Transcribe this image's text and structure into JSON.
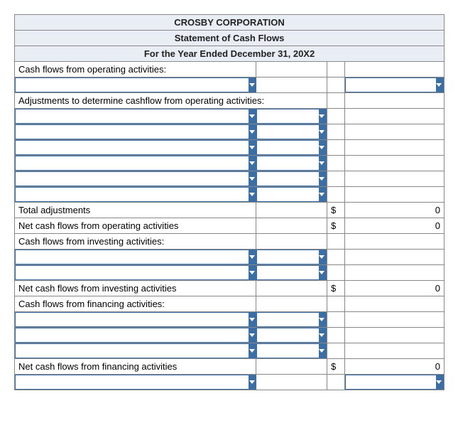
{
  "header": {
    "company": "CROSBY CORPORATION",
    "title": "Statement of Cash Flows",
    "period": "For the Year Ended December 31, 20X2"
  },
  "sections": {
    "op_label": "Cash flows from operating activities:",
    "adj_label": "Adjustments to determine cashflow from operating activities:",
    "tot_adj_label": "Total adjustments",
    "net_op_label": "Net cash flows from operating activities",
    "inv_label": "Cash flows from investing activities:",
    "net_inv_label": "Net cash flows from investing activities",
    "fin_label": "Cash flows from financing activities:",
    "net_fin_label": "Net cash flows from financing activities"
  },
  "currency": "$",
  "vals": {
    "tot_adj": "0",
    "net_op": "0",
    "net_inv": "0",
    "net_fin": "0"
  },
  "style": {
    "header_bg": "#e8eef4",
    "border_color": "#888888",
    "accent": "#3b6ea5",
    "font_size_pt": 10
  }
}
